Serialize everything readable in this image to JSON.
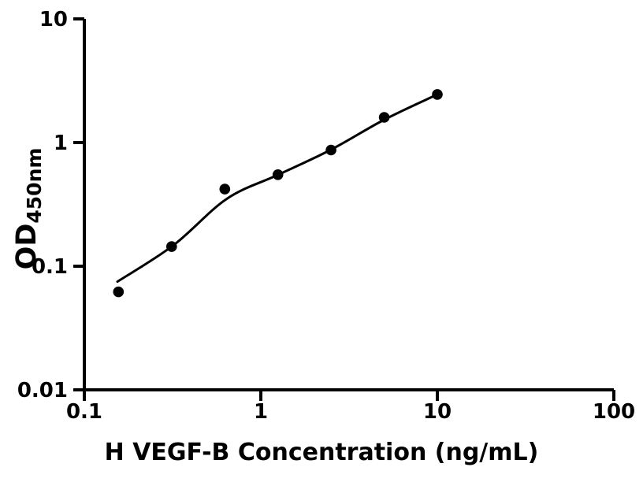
{
  "chart_data": {
    "type": "scatter",
    "title": "",
    "xlabel": "H VEGF-B Concentration (ng/mL)",
    "ylabel_main": "OD",
    "ylabel_sub": "450nm",
    "x_scale": "log",
    "y_scale": "log",
    "xlim": [
      0.1,
      100
    ],
    "ylim": [
      0.01,
      10
    ],
    "grid": false,
    "legend": null,
    "background_color": "#ffffff",
    "axis_color": "#000000",
    "marker_color": "#000000",
    "curve_color": "#000000",
    "x_ticks": [
      {
        "value": 0.1,
        "label": "0.1"
      },
      {
        "value": 1,
        "label": "1"
      },
      {
        "value": 10,
        "label": "10"
      },
      {
        "value": 100,
        "label": "100"
      }
    ],
    "y_ticks": [
      {
        "value": 10,
        "label": "10"
      },
      {
        "value": 1,
        "label": "1"
      },
      {
        "value": 0.1,
        "label": "0.1"
      },
      {
        "value": 0.01,
        "label": "0.01"
      }
    ],
    "series": [
      {
        "name": "standard-points",
        "type": "scatter",
        "marker": "circle",
        "color": "#000000",
        "points": [
          [
            0.156,
            0.062
          ],
          [
            0.3125,
            0.144
          ],
          [
            0.625,
            0.42
          ],
          [
            1.25,
            0.55
          ],
          [
            2.5,
            0.87
          ],
          [
            5,
            1.6
          ],
          [
            10,
            2.45
          ]
        ]
      },
      {
        "name": "fit-curve",
        "type": "line",
        "color": "#000000",
        "points": [
          [
            0.154,
            0.075
          ],
          [
            0.32,
            0.148
          ],
          [
            0.64,
            0.35
          ],
          [
            1.25,
            0.548
          ],
          [
            2.5,
            0.876
          ],
          [
            5,
            1.53
          ],
          [
            10,
            2.45
          ]
        ]
      }
    ]
  }
}
